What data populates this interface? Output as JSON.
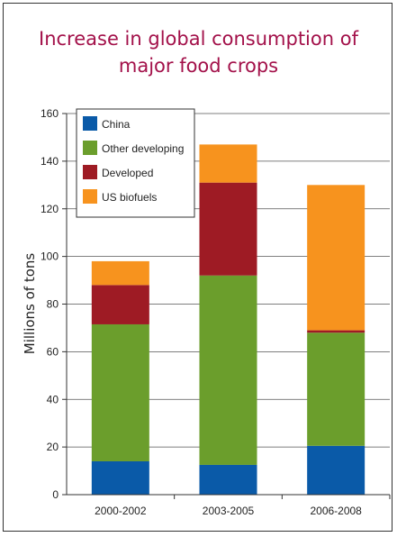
{
  "chart_data": {
    "type": "bar",
    "stacked": true,
    "title": "Increase in global consumption of major food crops",
    "title_lines": [
      "Increase in global consumption of",
      "major food crops"
    ],
    "xlabel": "",
    "ylabel": "Millions of tons",
    "ylim": [
      0,
      160
    ],
    "yticks": [
      0,
      20,
      40,
      60,
      80,
      100,
      120,
      140,
      160
    ],
    "grid": true,
    "legend_position": "top-left",
    "categories": [
      "2000-2002",
      "2003-2005",
      "2006-2008"
    ],
    "series": [
      {
        "name": "China",
        "color": "#0a5aa8",
        "values": [
          14,
          12.5,
          20.5
        ]
      },
      {
        "name": "Other developing",
        "color": "#6b9e2c",
        "values": [
          57.5,
          79.5,
          47.5
        ]
      },
      {
        "name": "Developed",
        "color": "#9e1b24",
        "values": [
          16.5,
          39,
          1
        ]
      },
      {
        "name": "US biofuels",
        "color": "#f7931e",
        "values": [
          10,
          16,
          61
        ]
      }
    ]
  }
}
